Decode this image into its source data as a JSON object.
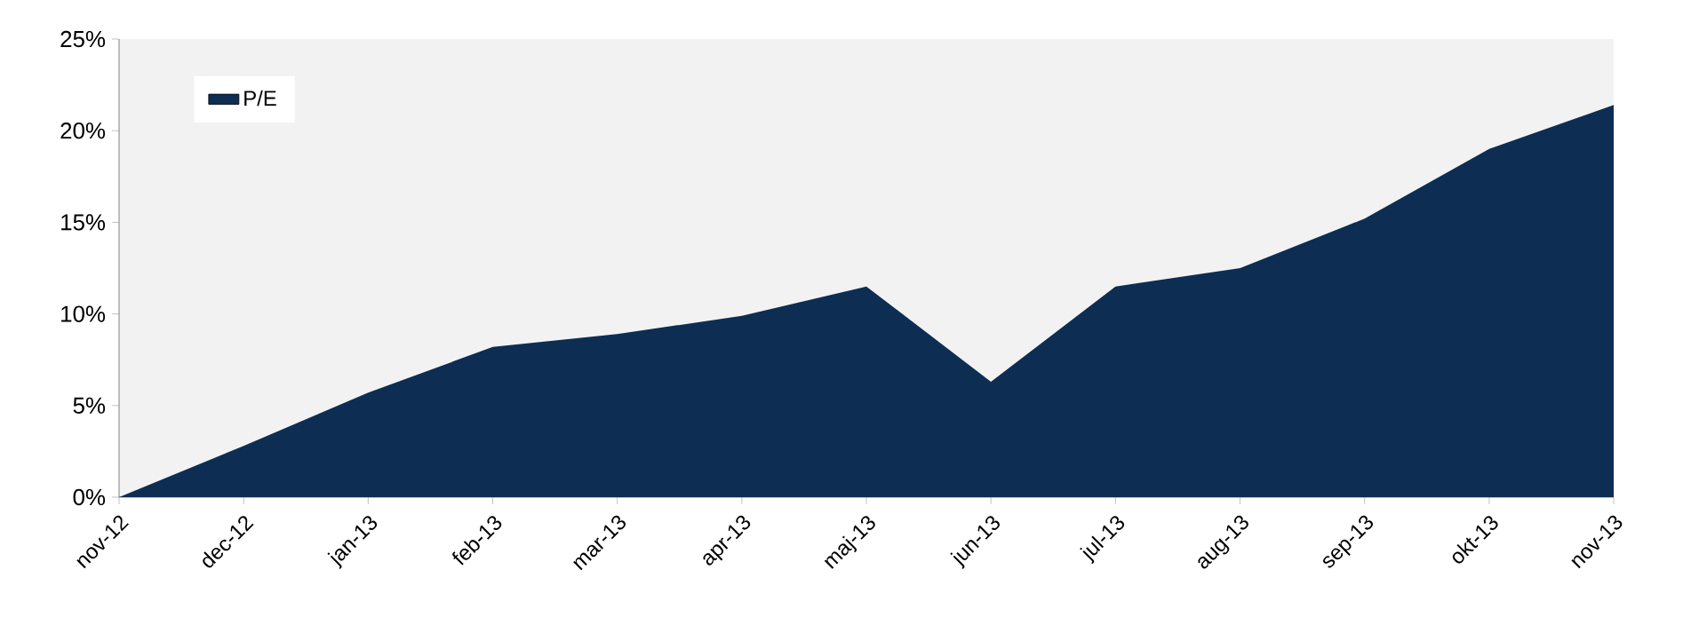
{
  "chart_data": {
    "type": "area",
    "categories": [
      "nov-12",
      "dec-12",
      "jan-13",
      "feb-13",
      "mar-13",
      "apr-13",
      "maj-13",
      "jun-13",
      "jul-13",
      "aug-13",
      "sep-13",
      "okt-13",
      "nov-13"
    ],
    "series": [
      {
        "name": "P/E",
        "color": "#0d2e52",
        "values": [
          0,
          2.8,
          5.7,
          8.2,
          8.9,
          9.9,
          11.5,
          6.3,
          11.5,
          12.5,
          15.2,
          19.0,
          21.4
        ]
      }
    ],
    "ylim": [
      0,
      25
    ],
    "yticks": [
      {
        "value": 0,
        "label": "0%"
      },
      {
        "value": 5,
        "label": "5%"
      },
      {
        "value": 10,
        "label": "10%"
      },
      {
        "value": 15,
        "label": "15%"
      },
      {
        "value": 20,
        "label": "20%"
      },
      {
        "value": 25,
        "label": "25%"
      }
    ],
    "legend": "top left",
    "grid": false
  }
}
